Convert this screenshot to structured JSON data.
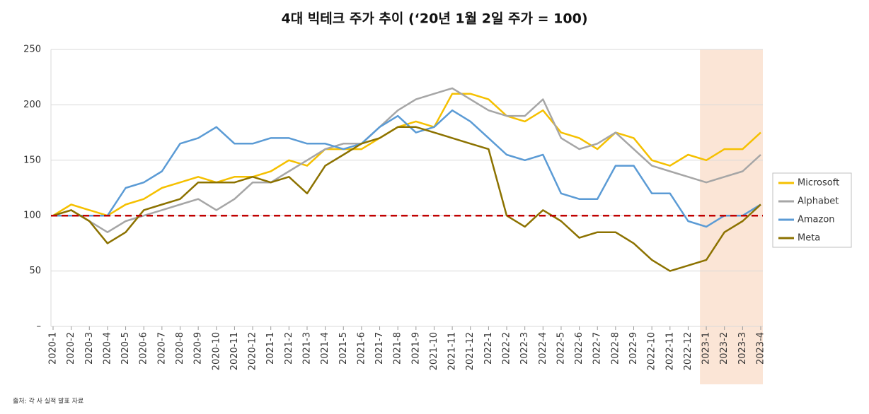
{
  "chart_data": {
    "type": "line",
    "title": "4대 빅테크 주가 추이 (‘20년 1월 2일 주가 = 100)",
    "note": "출처: 각 사 실적 발표 자료",
    "categories": [
      "2020-1",
      "2020-2",
      "2020-3",
      "2020-4",
      "2020-5",
      "2020-6",
      "2020-7",
      "2020-8",
      "2020-9",
      "2020-10",
      "2020-11",
      "2020-12",
      "2021-1",
      "2021-2",
      "2021-3",
      "2021-4",
      "2021-5",
      "2021-6",
      "2021-7",
      "2021-8",
      "2021-9",
      "2021-10",
      "2021-11",
      "2021-12",
      "2022-1",
      "2022-2",
      "2022-3",
      "2022-4",
      "2022-5",
      "2022-6",
      "2022-7",
      "2022-8",
      "2022-9",
      "2022-10",
      "2022-11",
      "2022-12",
      "2023-1",
      "2023-2",
      "2023-3",
      "2023-4"
    ],
    "series": [
      {
        "name": "Microsoft",
        "color": "#f5c000",
        "values": [
          100,
          110,
          105,
          100,
          110,
          115,
          125,
          130,
          135,
          130,
          135,
          135,
          140,
          150,
          145,
          160,
          160,
          160,
          170,
          180,
          185,
          180,
          210,
          210,
          205,
          190,
          185,
          195,
          175,
          170,
          160,
          175,
          170,
          150,
          145,
          155,
          150,
          160,
          160,
          175
        ]
      },
      {
        "name": "Alphabet",
        "color": "#a6a6a6",
        "values": [
          100,
          105,
          95,
          85,
          95,
          100,
          105,
          110,
          115,
          105,
          115,
          130,
          130,
          140,
          150,
          160,
          165,
          165,
          180,
          195,
          205,
          210,
          215,
          205,
          195,
          190,
          190,
          205,
          170,
          160,
          165,
          175,
          160,
          145,
          140,
          135,
          130,
          135,
          140,
          155
        ]
      },
      {
        "name": "Amazon",
        "color": "#5b9bd5",
        "values": [
          100,
          100,
          100,
          100,
          125,
          130,
          140,
          165,
          170,
          180,
          165,
          165,
          170,
          170,
          165,
          165,
          160,
          165,
          180,
          190,
          175,
          180,
          195,
          185,
          170,
          155,
          150,
          155,
          120,
          115,
          115,
          145,
          145,
          120,
          120,
          95,
          90,
          100,
          100,
          110
        ]
      },
      {
        "name": "Meta",
        "color": "#8c7200",
        "values": [
          100,
          105,
          95,
          75,
          85,
          105,
          110,
          115,
          130,
          130,
          130,
          135,
          130,
          135,
          120,
          145,
          155,
          165,
          170,
          180,
          180,
          175,
          170,
          165,
          160,
          100,
          90,
          105,
          95,
          80,
          85,
          85,
          75,
          60,
          50,
          55,
          60,
          85,
          95,
          110
        ]
      }
    ],
    "ylim": [
      0,
      250
    ],
    "yticks": [
      {
        "value": 0,
        "label": "–"
      },
      50,
      100,
      150,
      200,
      250
    ],
    "grid": true,
    "reference_line": {
      "value": 100,
      "color": "#c00000"
    },
    "shaded_from": "2023-1",
    "shade_color": "#fbe5d6",
    "legend": "right"
  }
}
